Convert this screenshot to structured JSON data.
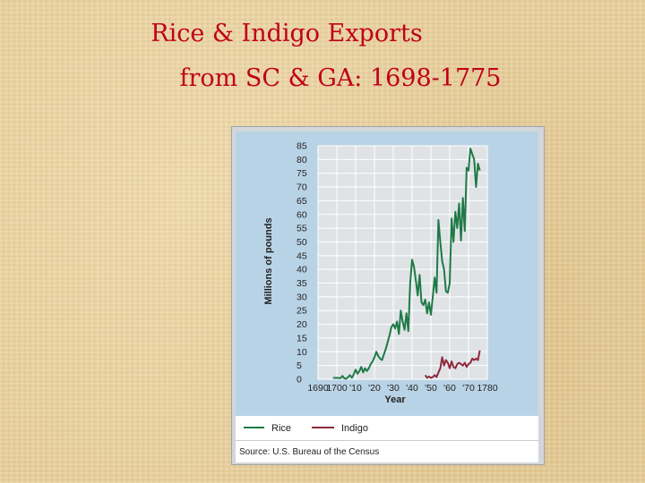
{
  "slide": {
    "title_line1": "Rice & Indigo Exports",
    "title_line2": "from SC & GA:  1698-1775",
    "title_color": "#c0001a",
    "background_color": "#e9cf9a"
  },
  "source": "Source: U.S. Bureau of the Census",
  "chart_data": {
    "type": "line",
    "title": "",
    "xlabel": "Year",
    "ylabel": "Millions of pounds",
    "xlim": [
      1690,
      1780
    ],
    "ylim": [
      0,
      85
    ],
    "x_ticks": [
      1690,
      1700,
      1710,
      1720,
      1730,
      1740,
      1750,
      1760,
      1770,
      1780
    ],
    "x_tick_labels": [
      "1690",
      "1700",
      "'10",
      "'20",
      "'30",
      "'40",
      "'50",
      "'60",
      "'70",
      "1780"
    ],
    "y_ticks": [
      0,
      5,
      10,
      15,
      20,
      25,
      30,
      35,
      40,
      45,
      50,
      55,
      60,
      65,
      70,
      75,
      80,
      85
    ],
    "grid": true,
    "legend_position": "bottom",
    "series": [
      {
        "name": "Rice",
        "color": "#1f7a46",
        "points": [
          [
            1698,
            0.5
          ],
          [
            1700,
            0.5
          ],
          [
            1702,
            0.4
          ],
          [
            1703,
            1.2
          ],
          [
            1704,
            0.3
          ],
          [
            1705,
            0.2
          ],
          [
            1706,
            0.8
          ],
          [
            1707,
            1.5
          ],
          [
            1708,
            0.5
          ],
          [
            1709,
            1.8
          ],
          [
            1710,
            3.5
          ],
          [
            1711,
            2.0
          ],
          [
            1712,
            3.0
          ],
          [
            1713,
            4.5
          ],
          [
            1714,
            2.5
          ],
          [
            1715,
            4.0
          ],
          [
            1716,
            3.0
          ],
          [
            1717,
            4.0
          ],
          [
            1718,
            5.5
          ],
          [
            1719,
            6.5
          ],
          [
            1720,
            8.0
          ],
          [
            1721,
            10.0
          ],
          [
            1722,
            8.5
          ],
          [
            1723,
            7.5
          ],
          [
            1724,
            7.0
          ],
          [
            1725,
            9.0
          ],
          [
            1726,
            11.0
          ],
          [
            1727,
            13.5
          ],
          [
            1728,
            16.0
          ],
          [
            1729,
            19.0
          ],
          [
            1730,
            20.0
          ],
          [
            1731,
            18.5
          ],
          [
            1732,
            21.0
          ],
          [
            1733,
            16.5
          ],
          [
            1734,
            25.0
          ],
          [
            1735,
            21.0
          ],
          [
            1736,
            18.0
          ],
          [
            1737,
            24.0
          ],
          [
            1738,
            17.5
          ],
          [
            1739,
            35.0
          ],
          [
            1740,
            43.5
          ],
          [
            1741,
            41.0
          ],
          [
            1742,
            36.0
          ],
          [
            1743,
            30.5
          ],
          [
            1744,
            38.0
          ],
          [
            1745,
            28.0
          ],
          [
            1746,
            27.0
          ],
          [
            1747,
            29.0
          ],
          [
            1748,
            24.0
          ],
          [
            1749,
            28.0
          ],
          [
            1750,
            23.5
          ],
          [
            1751,
            30.0
          ],
          [
            1752,
            37.0
          ],
          [
            1753,
            31.5
          ],
          [
            1754,
            58.0
          ],
          [
            1755,
            50.0
          ],
          [
            1756,
            43.0
          ],
          [
            1757,
            40.0
          ],
          [
            1758,
            32.0
          ],
          [
            1759,
            31.5
          ],
          [
            1760,
            35.0
          ],
          [
            1761,
            58.5
          ],
          [
            1762,
            50.0
          ],
          [
            1763,
            61.0
          ],
          [
            1764,
            55.0
          ],
          [
            1765,
            64.0
          ],
          [
            1766,
            50.5
          ],
          [
            1767,
            66.0
          ],
          [
            1768,
            54.0
          ],
          [
            1769,
            77.0
          ],
          [
            1770,
            76.0
          ],
          [
            1771,
            84.0
          ],
          [
            1772,
            82.0
          ],
          [
            1773,
            80.0
          ],
          [
            1774,
            70.0
          ],
          [
            1775,
            78.5
          ],
          [
            1776,
            76.0
          ]
        ]
      },
      {
        "name": "Indigo",
        "color": "#8f2a3c",
        "points": [
          [
            1747,
            1.5
          ],
          [
            1748,
            0.5
          ],
          [
            1749,
            1.0
          ],
          [
            1750,
            0.5
          ],
          [
            1751,
            0.8
          ],
          [
            1752,
            1.5
          ],
          [
            1753,
            0.8
          ],
          [
            1754,
            2.5
          ],
          [
            1755,
            4.0
          ],
          [
            1756,
            8.0
          ],
          [
            1757,
            5.0
          ],
          [
            1758,
            7.0
          ],
          [
            1759,
            6.0
          ],
          [
            1760,
            4.0
          ],
          [
            1761,
            6.5
          ],
          [
            1762,
            4.5
          ],
          [
            1763,
            4.0
          ],
          [
            1764,
            5.5
          ],
          [
            1765,
            6.0
          ],
          [
            1766,
            5.5
          ],
          [
            1767,
            5.0
          ],
          [
            1768,
            6.0
          ],
          [
            1769,
            4.5
          ],
          [
            1770,
            5.5
          ],
          [
            1771,
            6.0
          ],
          [
            1772,
            7.5
          ],
          [
            1773,
            7.0
          ],
          [
            1774,
            7.5
          ],
          [
            1775,
            7.0
          ],
          [
            1776,
            10.5
          ]
        ]
      }
    ]
  }
}
